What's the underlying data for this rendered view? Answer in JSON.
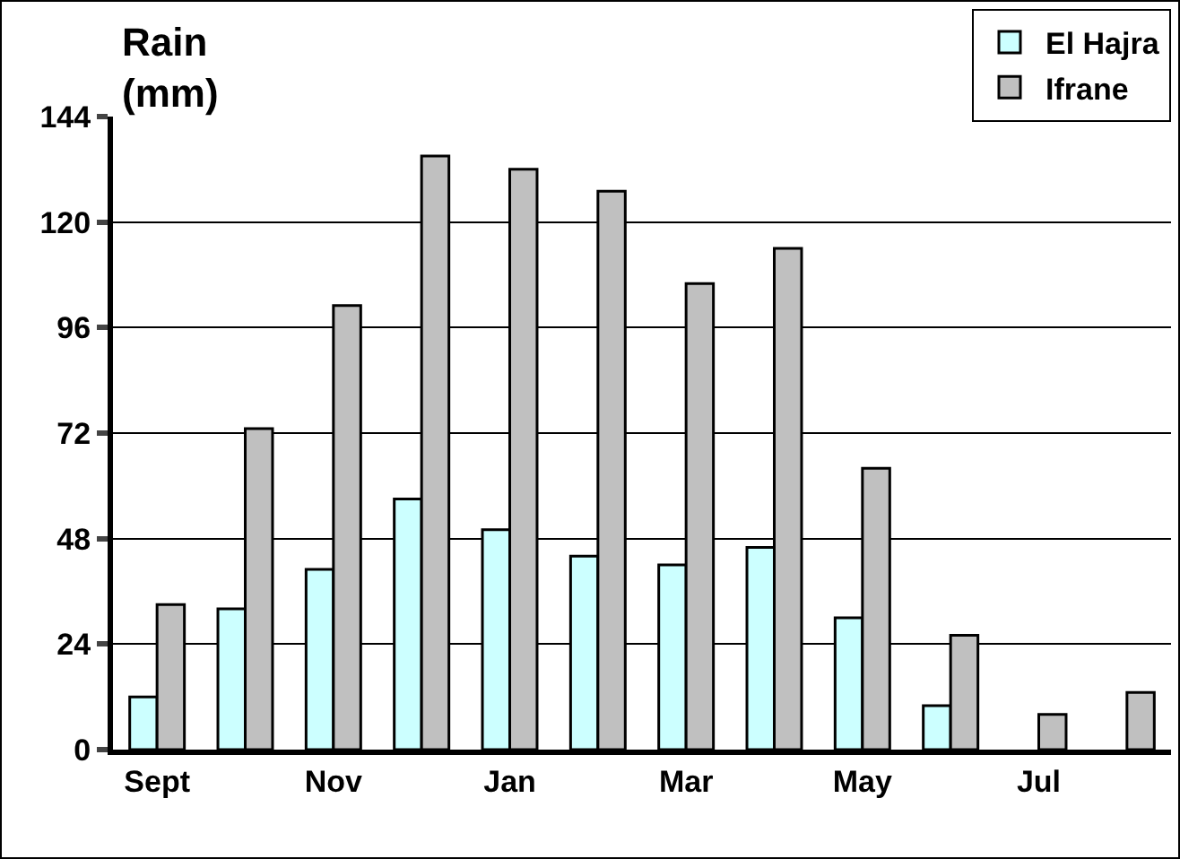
{
  "chart_data": {
    "type": "bar",
    "ylabel": "Rain\n(mm)",
    "categories": [
      "Sept",
      null,
      "Nov",
      null,
      "Jan",
      null,
      "Mar",
      null,
      "May",
      null,
      "Jul",
      null
    ],
    "series": [
      {
        "name": "El Hajra",
        "color": "#ccffff",
        "values": [
          12,
          32,
          41,
          57,
          50,
          44,
          42,
          46,
          30,
          10,
          null,
          null
        ]
      },
      {
        "name": "Ifrane",
        "color": "#c0c0c0",
        "values": [
          33,
          73,
          101,
          135,
          132,
          127,
          106,
          114,
          64,
          26,
          8,
          13
        ]
      }
    ],
    "ylim": [
      0,
      144
    ],
    "yticks": [
      0,
      24,
      48,
      72,
      96,
      120,
      144
    ],
    "grid": "y",
    "legend": "top right"
  }
}
